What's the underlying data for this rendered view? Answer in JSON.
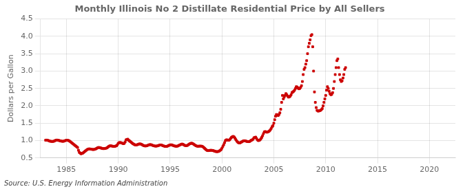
{
  "chart_data": {
    "type": "scatter",
    "title": "Monthly Illinois No 2 Distillate Residential Price by All Sellers",
    "ylabel": "Dollars per Gallon",
    "annotation": "Source: U.S. Energy Information Administration",
    "color": "#CC0000",
    "marker": "square",
    "grid": true,
    "xlim": [
      1982.5,
      2022.5
    ],
    "ylim": [
      0.5,
      4.5
    ],
    "xticks": [
      1985,
      1990,
      1995,
      2000,
      2005,
      2010,
      2015,
      2020
    ],
    "yticks": [
      0.5,
      {
        "value": 1.0,
        "label": "1.0"
      },
      1.5,
      {
        "value": 2.0,
        "label": "2.0"
      },
      2.5,
      {
        "value": 3.0,
        "label": "3.0"
      },
      3.5,
      {
        "value": 4.0,
        "label": "4.0"
      },
      4.5
    ],
    "x": [
      1983.0,
      1983.083,
      1983.167,
      1983.25,
      1983.333,
      1983.417,
      1983.5,
      1983.583,
      1983.667,
      1983.75,
      1983.833,
      1983.917,
      1984.0,
      1984.083,
      1984.167,
      1984.25,
      1984.333,
      1984.417,
      1984.5,
      1984.583,
      1984.667,
      1984.75,
      1984.833,
      1984.917,
      1985.0,
      1985.083,
      1985.167,
      1985.25,
      1985.333,
      1985.417,
      1985.5,
      1985.583,
      1985.667,
      1985.75,
      1985.833,
      1985.917,
      1986.0,
      1986.083,
      1986.167,
      1986.25,
      1986.333,
      1986.417,
      1986.5,
      1986.583,
      1986.667,
      1986.75,
      1986.833,
      1986.917,
      1987.0,
      1987.083,
      1987.167,
      1987.25,
      1987.333,
      1987.417,
      1987.5,
      1987.583,
      1987.667,
      1987.75,
      1987.833,
      1987.917,
      1988.0,
      1988.083,
      1988.167,
      1988.25,
      1988.333,
      1988.417,
      1988.5,
      1988.583,
      1988.667,
      1988.75,
      1988.833,
      1988.917,
      1989.0,
      1989.083,
      1989.167,
      1989.25,
      1989.333,
      1989.417,
      1989.5,
      1989.583,
      1989.667,
      1989.75,
      1989.833,
      1989.917,
      1990.0,
      1990.083,
      1990.167,
      1990.25,
      1990.333,
      1990.417,
      1990.5,
      1990.583,
      1990.667,
      1990.75,
      1990.833,
      1990.917,
      1991.0,
      1991.083,
      1991.167,
      1991.25,
      1991.333,
      1991.417,
      1991.5,
      1991.583,
      1991.667,
      1991.75,
      1991.833,
      1991.917,
      1992.0,
      1992.083,
      1992.167,
      1992.25,
      1992.333,
      1992.417,
      1992.5,
      1992.583,
      1992.667,
      1992.75,
      1992.833,
      1992.917,
      1993.0,
      1993.083,
      1993.167,
      1993.25,
      1993.333,
      1993.417,
      1993.5,
      1993.583,
      1993.667,
      1993.75,
      1993.833,
      1993.917,
      1994.0,
      1994.083,
      1994.167,
      1994.25,
      1994.333,
      1994.417,
      1994.5,
      1994.583,
      1994.667,
      1994.75,
      1994.833,
      1994.917,
      1995.0,
      1995.083,
      1995.167,
      1995.25,
      1995.333,
      1995.417,
      1995.5,
      1995.583,
      1995.667,
      1995.75,
      1995.833,
      1995.917,
      1996.0,
      1996.083,
      1996.167,
      1996.25,
      1996.333,
      1996.417,
      1996.5,
      1996.583,
      1996.667,
      1996.75,
      1996.833,
      1996.917,
      1997.0,
      1997.083,
      1997.167,
      1997.25,
      1997.333,
      1997.417,
      1997.5,
      1997.583,
      1997.667,
      1997.75,
      1997.833,
      1997.917,
      1998.0,
      1998.083,
      1998.167,
      1998.25,
      1998.333,
      1998.417,
      1998.5,
      1998.583,
      1998.667,
      1998.75,
      1998.833,
      1998.917,
      1999.0,
      1999.083,
      1999.167,
      1999.25,
      1999.333,
      1999.417,
      1999.5,
      1999.583,
      1999.667,
      1999.75,
      1999.833,
      1999.917,
      2000.0,
      2000.083,
      2000.167,
      2000.25,
      2000.333,
      2000.417,
      2000.5,
      2000.583,
      2000.667,
      2000.75,
      2000.833,
      2000.917,
      2001.0,
      2001.083,
      2001.167,
      2001.25,
      2001.333,
      2001.417,
      2001.5,
      2001.583,
      2001.667,
      2001.75,
      2001.833,
      2001.917,
      2002.0,
      2002.083,
      2002.167,
      2002.25,
      2002.333,
      2002.417,
      2002.5,
      2002.583,
      2002.667,
      2002.75,
      2002.833,
      2002.917,
      2003.0,
      2003.083,
      2003.167,
      2003.25,
      2003.333,
      2003.417,
      2003.5,
      2003.583,
      2003.667,
      2003.75,
      2003.833,
      2003.917,
      2004.0,
      2004.083,
      2004.167,
      2004.25,
      2004.333,
      2004.417,
      2004.5,
      2004.583,
      2004.667,
      2004.75,
      2004.833,
      2004.917,
      2005.0,
      2005.083,
      2005.167,
      2005.25,
      2005.333,
      2005.417,
      2005.5,
      2005.583,
      2005.667,
      2005.75,
      2005.833,
      2005.917,
      2006.0,
      2006.083,
      2006.167,
      2006.25,
      2006.333,
      2006.417,
      2006.5,
      2006.583,
      2006.667,
      2006.75,
      2006.833,
      2006.917,
      2007.0,
      2007.083,
      2007.167,
      2007.25,
      2007.333,
      2007.417,
      2007.5,
      2007.583,
      2007.667,
      2007.75,
      2007.833,
      2007.917,
      2008.0,
      2008.083,
      2008.167,
      2008.25,
      2008.333,
      2008.417,
      2008.5,
      2008.583,
      2008.667,
      2008.75,
      2008.833,
      2008.917,
      2009.0,
      2009.083,
      2009.167,
      2009.25,
      2009.333,
      2009.417,
      2009.5,
      2009.583,
      2009.667,
      2009.75,
      2009.833,
      2009.917,
      2010.0,
      2010.083,
      2010.167,
      2010.25,
      2010.333,
      2010.417,
      2010.5,
      2010.583,
      2010.667,
      2010.75,
      2010.833,
      2010.917,
      2011.0,
      2011.083,
      2011.167,
      2011.25,
      2011.333,
      2011.417,
      2011.5,
      2011.583,
      2011.667,
      2011.75,
      2011.833,
      2011.917
    ],
    "values": [
      1.011,
      1.014,
      1.01,
      1.004,
      0.992,
      0.982,
      0.98,
      0.976,
      0.975,
      0.978,
      0.985,
      1.0,
      1.01,
      1.015,
      1.012,
      1.005,
      0.998,
      0.99,
      0.985,
      0.98,
      0.978,
      0.982,
      0.992,
      1.002,
      1.01,
      1.012,
      1.005,
      0.995,
      0.98,
      0.96,
      0.94,
      0.92,
      0.9,
      0.88,
      0.86,
      0.84,
      0.82,
      0.8,
      0.72,
      0.66,
      0.64,
      0.62,
      0.63,
      0.64,
      0.66,
      0.68,
      0.7,
      0.72,
      0.74,
      0.75,
      0.76,
      0.76,
      0.755,
      0.75,
      0.745,
      0.742,
      0.745,
      0.75,
      0.76,
      0.775,
      0.79,
      0.8,
      0.8,
      0.795,
      0.785,
      0.778,
      0.77,
      0.768,
      0.77,
      0.775,
      0.78,
      0.79,
      0.81,
      0.83,
      0.845,
      0.85,
      0.845,
      0.84,
      0.835,
      0.83,
      0.835,
      0.84,
      0.85,
      0.88,
      0.92,
      0.94,
      0.945,
      0.94,
      0.93,
      0.92,
      0.91,
      0.92,
      0.96,
      1.02,
      1.03,
      1.04,
      1.01,
      0.99,
      0.97,
      0.95,
      0.93,
      0.91,
      0.895,
      0.88,
      0.875,
      0.875,
      0.88,
      0.89,
      0.9,
      0.905,
      0.9,
      0.89,
      0.875,
      0.86,
      0.85,
      0.845,
      0.845,
      0.85,
      0.86,
      0.87,
      0.88,
      0.885,
      0.88,
      0.87,
      0.86,
      0.85,
      0.845,
      0.84,
      0.84,
      0.845,
      0.855,
      0.86,
      0.87,
      0.875,
      0.87,
      0.86,
      0.85,
      0.84,
      0.835,
      0.83,
      0.832,
      0.84,
      0.855,
      0.865,
      0.875,
      0.878,
      0.875,
      0.865,
      0.855,
      0.845,
      0.84,
      0.836,
      0.838,
      0.845,
      0.858,
      0.87,
      0.88,
      0.895,
      0.9,
      0.89,
      0.875,
      0.86,
      0.855,
      0.855,
      0.86,
      0.878,
      0.895,
      0.91,
      0.92,
      0.925,
      0.915,
      0.9,
      0.882,
      0.865,
      0.85,
      0.84,
      0.835,
      0.838,
      0.84,
      0.84,
      0.84,
      0.835,
      0.82,
      0.8,
      0.775,
      0.75,
      0.73,
      0.715,
      0.71,
      0.712,
      0.718,
      0.72,
      0.72,
      0.715,
      0.71,
      0.7,
      0.69,
      0.685,
      0.68,
      0.682,
      0.688,
      0.7,
      0.72,
      0.74,
      0.78,
      0.83,
      0.88,
      0.94,
      1.0,
      1.02,
      1.02,
      1.01,
      1.01,
      1.025,
      1.06,
      1.09,
      1.11,
      1.12,
      1.105,
      1.07,
      1.03,
      0.99,
      0.96,
      0.94,
      0.93,
      0.935,
      0.95,
      0.965,
      0.98,
      0.99,
      0.995,
      0.99,
      0.982,
      0.975,
      0.97,
      0.968,
      0.975,
      0.99,
      1.01,
      1.02,
      1.04,
      1.08,
      1.09,
      1.1,
      1.06,
      1.02,
      1.0,
      1.005,
      1.02,
      1.05,
      1.09,
      1.14,
      1.2,
      1.25,
      1.26,
      1.25,
      1.24,
      1.25,
      1.26,
      1.28,
      1.31,
      1.35,
      1.4,
      1.43,
      1.5,
      1.6,
      1.7,
      1.75,
      1.74,
      1.72,
      1.75,
      1.8,
      1.9,
      2.1,
      2.3,
      2.2,
      2.25,
      2.3,
      2.35,
      2.32,
      2.28,
      2.25,
      2.26,
      2.28,
      2.32,
      2.38,
      2.4,
      2.42,
      2.45,
      2.5,
      2.55,
      2.54,
      2.51,
      2.49,
      2.5,
      2.53,
      2.58,
      2.7,
      2.9,
      3.05,
      3.1,
      3.2,
      3.3,
      3.5,
      3.7,
      3.8,
      3.9,
      4.02,
      4.05,
      3.7,
      3.0,
      2.4,
      2.1,
      1.95,
      1.87,
      1.85,
      1.85,
      1.86,
      1.87,
      1.89,
      1.92,
      2.0,
      2.1,
      2.2,
      2.3,
      2.45,
      2.55,
      2.5,
      2.42,
      2.35,
      2.32,
      2.33,
      2.38,
      2.5,
      2.7,
      2.9,
      3.1,
      3.3,
      3.35,
      3.1,
      2.9,
      2.75,
      2.7,
      2.72,
      2.8,
      2.9,
      3.05,
      3.1
    ]
  }
}
